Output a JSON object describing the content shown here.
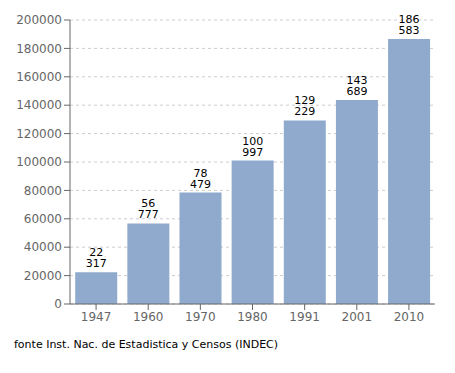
{
  "chart_data": {
    "type": "bar",
    "categories": [
      "1947",
      "1960",
      "1970",
      "1980",
      "1991",
      "2001",
      "2010"
    ],
    "values": [
      22317,
      56777,
      78479,
      100997,
      129229,
      143689,
      186583
    ],
    "value_labels": [
      "22 317",
      "56 777",
      "78 479",
      "100 997",
      "129 229",
      "143 689",
      "186 583"
    ],
    "color": "#8faacc",
    "ylim": [
      0,
      200000
    ],
    "yticks": [
      0,
      20000,
      40000,
      60000,
      80000,
      100000,
      120000,
      140000,
      160000,
      180000,
      200000
    ],
    "grid": true,
    "data_labels": true,
    "annotations": [
      "fonte Inst. Nac. de Estadistica y Censos (INDEC)"
    ]
  }
}
